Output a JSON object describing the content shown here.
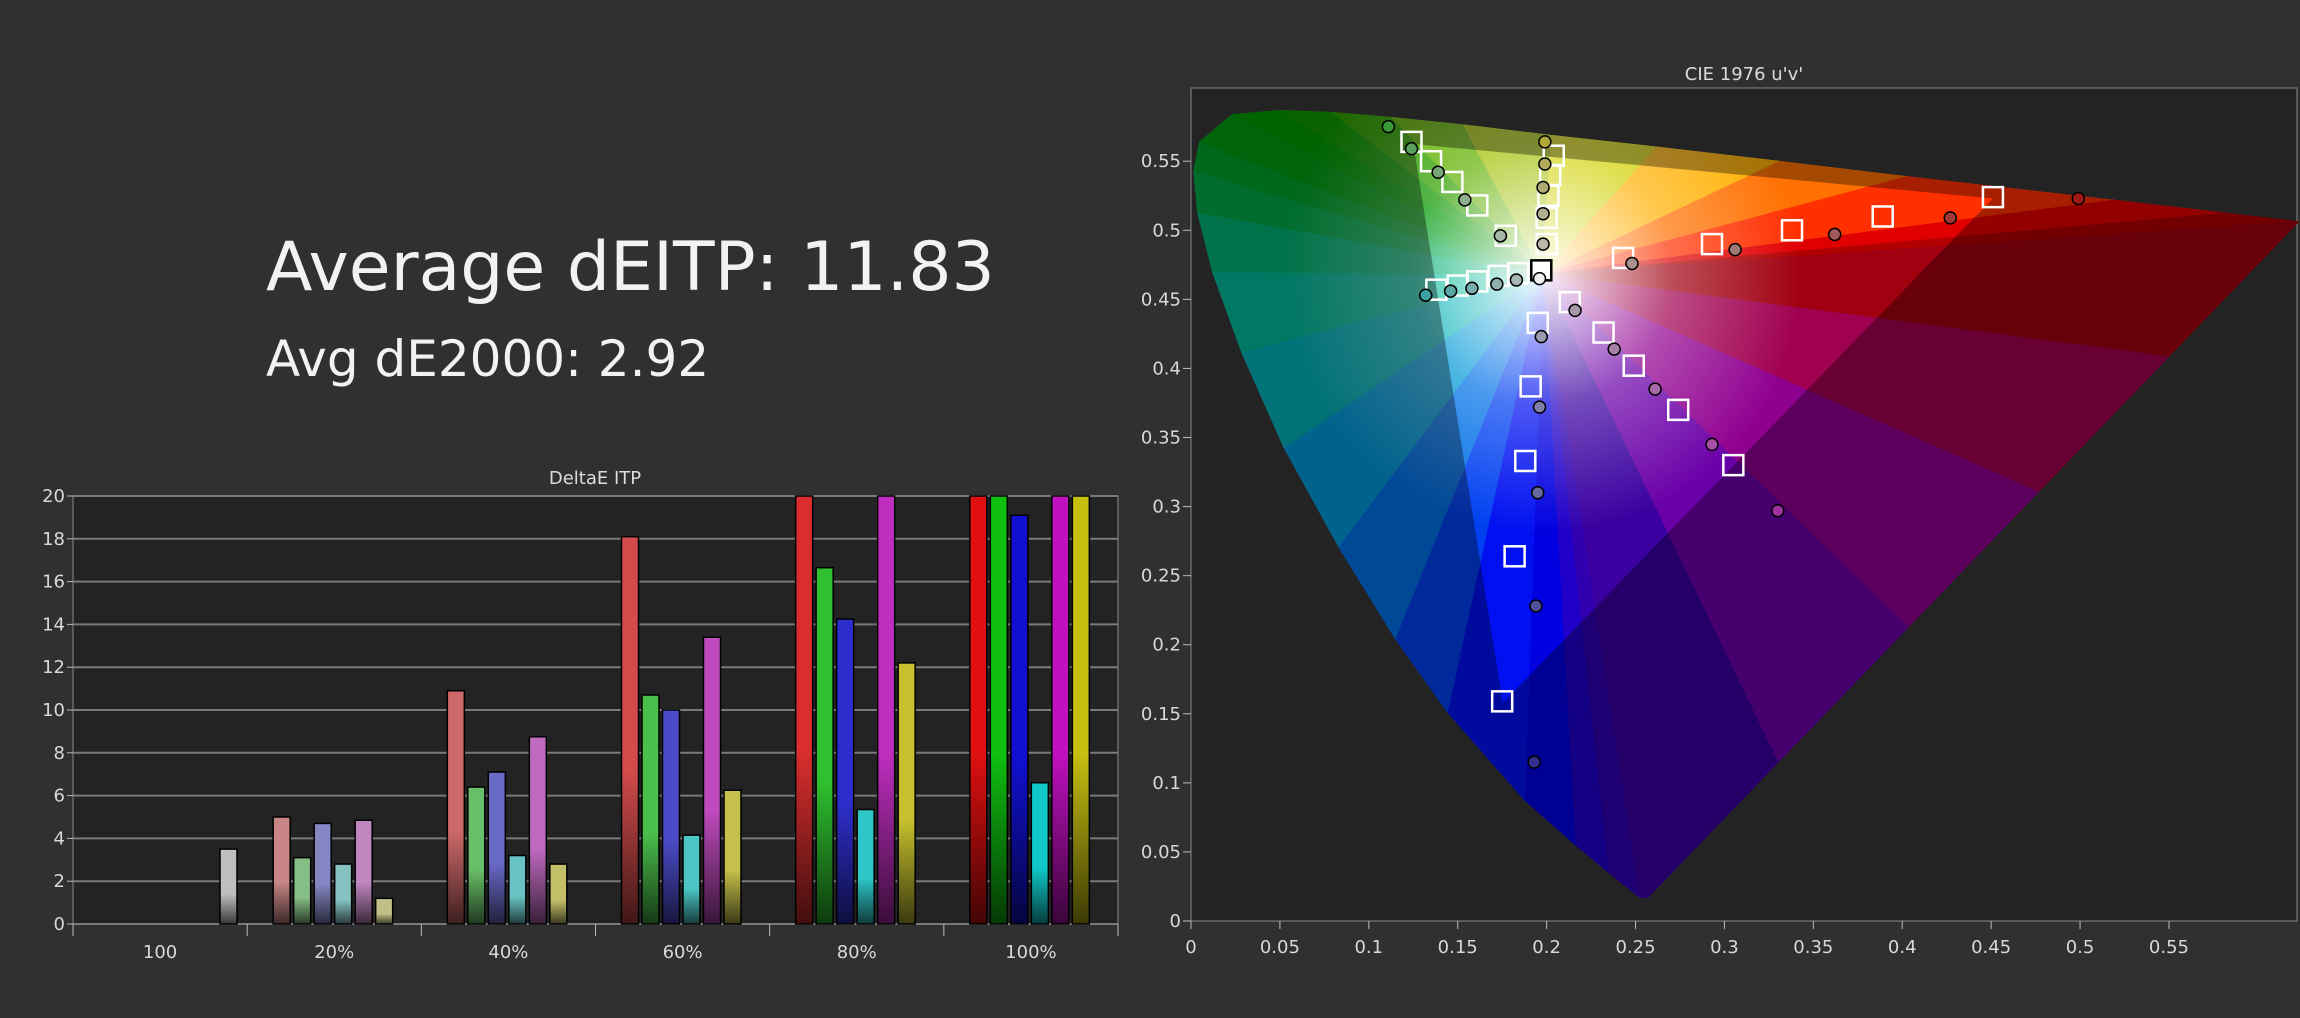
{
  "summary": {
    "average_deitp": "Average dEITP: 11.83",
    "avg_de2000": "Avg dE2000: 2.92"
  },
  "colors": {
    "background": "#303030",
    "plot_background": "#232323",
    "grid": "#7a7a7a"
  },
  "chart_data": [
    {
      "type": "bar",
      "title": "DeltaE ITP",
      "categories": [
        "100",
        "20%",
        "40%",
        "60%",
        "80%",
        "100%"
      ],
      "ylim": [
        0,
        20
      ],
      "yticks": [
        0,
        2,
        4,
        6,
        8,
        10,
        12,
        14,
        16,
        18,
        20
      ],
      "grid": true,
      "note_values_clipped_at": 20,
      "series": [
        {
          "color_name": "white",
          "color": "#ffffff",
          "values": [
            3.5,
            null,
            null,
            null,
            null,
            null
          ]
        },
        {
          "color_name": "red",
          "color": "#e01010",
          "values": [
            null,
            5.0,
            10.9,
            18.1,
            20,
            20
          ]
        },
        {
          "color_name": "green",
          "color": "#10c010",
          "values": [
            null,
            3.1,
            6.4,
            10.7,
            16.65,
            20
          ]
        },
        {
          "color_name": "blue",
          "color": "#1010d0",
          "values": [
            null,
            4.7,
            7.1,
            10.0,
            14.25,
            19.1
          ]
        },
        {
          "color_name": "cyan",
          "color": "#10c8c8",
          "values": [
            null,
            2.8,
            3.2,
            4.15,
            5.35,
            6.6
          ]
        },
        {
          "color_name": "magenta",
          "color": "#c010c0",
          "values": [
            null,
            4.85,
            8.75,
            13.4,
            20,
            20
          ]
        },
        {
          "color_name": "yellow",
          "color": "#c8c010",
          "values": [
            null,
            1.2,
            2.8,
            6.25,
            12.2,
            20
          ]
        }
      ]
    },
    {
      "type": "scatter",
      "title": "CIE 1976 u'v'",
      "xlim": [
        0,
        0.622
      ],
      "ylim": [
        0,
        0.603
      ],
      "xticks": [
        "0",
        "0.05",
        "0.1",
        "0.15",
        "0.2",
        "0.25",
        "0.3",
        "0.35",
        "0.4",
        "0.45",
        "0.5",
        "0.55"
      ],
      "yticks": [
        "0",
        "0.05",
        "0.1",
        "0.15",
        "0.2",
        "0.25",
        "0.3",
        "0.35",
        "0.4",
        "0.45",
        "0.5",
        "0.55"
      ],
      "grid": false,
      "gamut_triangle": [
        [
          0.451,
          0.523
        ],
        [
          0.125,
          0.5625
        ],
        [
          0.1754,
          0.1579
        ]
      ],
      "white_point": [
        0.1978,
        0.4683
      ],
      "targets": [
        [
          0.124,
          0.564
        ],
        [
          0.135,
          0.55
        ],
        [
          0.147,
          0.535
        ],
        [
          0.161,
          0.518
        ],
        [
          0.177,
          0.496
        ],
        [
          0.204,
          0.554
        ],
        [
          0.202,
          0.54
        ],
        [
          0.201,
          0.525
        ],
        [
          0.2,
          0.509
        ],
        [
          0.2,
          0.49
        ],
        [
          0.451,
          0.524
        ],
        [
          0.389,
          0.51
        ],
        [
          0.338,
          0.5
        ],
        [
          0.293,
          0.49
        ],
        [
          0.243,
          0.48
        ],
        [
          0.138,
          0.457
        ],
        [
          0.15,
          0.46
        ],
        [
          0.161,
          0.463
        ],
        [
          0.173,
          0.467
        ],
        [
          0.184,
          0.469
        ],
        [
          0.213,
          0.448
        ],
        [
          0.232,
          0.426
        ],
        [
          0.249,
          0.402
        ],
        [
          0.274,
          0.37
        ],
        [
          0.305,
          0.33
        ],
        [
          0.195,
          0.433
        ],
        [
          0.191,
          0.387
        ],
        [
          0.188,
          0.333
        ],
        [
          0.182,
          0.264
        ],
        [
          0.175,
          0.159
        ],
        [
          0.197,
          0.471
        ]
      ],
      "measured": [
        {
          "uv": [
            0.111,
            0.575
          ],
          "color": "#3a9a3a"
        },
        {
          "uv": [
            0.124,
            0.559
          ],
          "color": "#5aa05a"
        },
        {
          "uv": [
            0.139,
            0.542
          ],
          "color": "#78a878"
        },
        {
          "uv": [
            0.154,
            0.522
          ],
          "color": "#90ae90"
        },
        {
          "uv": [
            0.174,
            0.496
          ],
          "color": "#a8b8a8"
        },
        {
          "uv": [
            0.199,
            0.564
          ],
          "color": "#b0a838"
        },
        {
          "uv": [
            0.199,
            0.548
          ],
          "color": "#b0aa58"
        },
        {
          "uv": [
            0.198,
            0.531
          ],
          "color": "#b0ac78"
        },
        {
          "uv": [
            0.198,
            0.512
          ],
          "color": "#b2b090"
        },
        {
          "uv": [
            0.198,
            0.49
          ],
          "color": "#b8b6a8"
        },
        {
          "uv": [
            0.499,
            0.523
          ],
          "color": "#a01818"
        },
        {
          "uv": [
            0.427,
            0.509
          ],
          "color": "#a03838"
        },
        {
          "uv": [
            0.362,
            0.497
          ],
          "color": "#a05858"
        },
        {
          "uv": [
            0.306,
            0.486
          ],
          "color": "#a07878"
        },
        {
          "uv": [
            0.248,
            0.476
          ],
          "color": "#a89090"
        },
        {
          "uv": [
            0.132,
            0.453
          ],
          "color": "#3aa0a0"
        },
        {
          "uv": [
            0.146,
            0.456
          ],
          "color": "#5aa6a6"
        },
        {
          "uv": [
            0.158,
            0.458
          ],
          "color": "#78acac"
        },
        {
          "uv": [
            0.172,
            0.461
          ],
          "color": "#90b0b0"
        },
        {
          "uv": [
            0.183,
            0.464
          ],
          "color": "#a8b6b6"
        },
        {
          "uv": [
            0.216,
            0.442
          ],
          "color": "#a898a8"
        },
        {
          "uv": [
            0.238,
            0.414
          ],
          "color": "#a880a8"
        },
        {
          "uv": [
            0.261,
            0.385
          ],
          "color": "#a868a8"
        },
        {
          "uv": [
            0.293,
            0.345
          ],
          "color": "#a850a8"
        },
        {
          "uv": [
            0.33,
            0.297
          ],
          "color": "#a030a0"
        },
        {
          "uv": [
            0.197,
            0.423
          ],
          "color": "#9a9ab0"
        },
        {
          "uv": [
            0.196,
            0.372
          ],
          "color": "#8080a8"
        },
        {
          "uv": [
            0.195,
            0.31
          ],
          "color": "#6868a0"
        },
        {
          "uv": [
            0.194,
            0.228
          ],
          "color": "#50509a"
        },
        {
          "uv": [
            0.193,
            0.115
          ],
          "color": "#303090"
        },
        {
          "uv": [
            0.196,
            0.465
          ],
          "color": "#f0f0f0"
        }
      ]
    }
  ]
}
